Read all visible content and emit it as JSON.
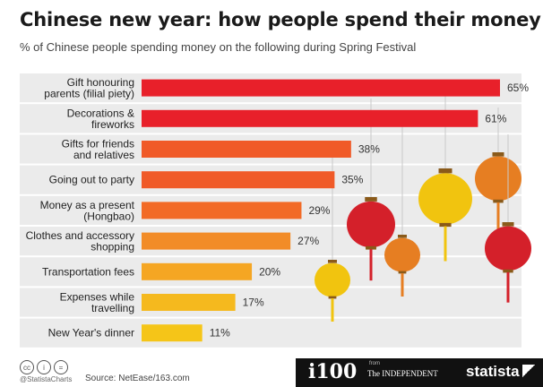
{
  "header": {
    "title": "Chinese new year: how people spend their money",
    "subtitle": "% of Chinese people spending money on the following during Spring Festival"
  },
  "footer": {
    "handle": "@StatistaCharts",
    "source": "Source: NetEase/163.com",
    "i100": "i100",
    "from": "from",
    "independent": "The INDEPENDENT",
    "statista": "statista"
  },
  "colors": {
    "top": "#e8202a",
    "mid": "#f05a28",
    "orange": "#f28c28",
    "low": "#f5a623",
    "yellow": "#f5c518",
    "row_bg": "#ebebeb",
    "lantern_red": "#d4202a",
    "lantern_orange": "#e67e22",
    "lantern_yellow": "#f1c40f"
  },
  "chart_data": {
    "type": "bar",
    "orientation": "horizontal",
    "value_suffix": "%",
    "xlim": [
      0,
      65
    ],
    "categories": [
      [
        "Gift honouring",
        "parents (filial piety)"
      ],
      [
        "Decorations &",
        "fireworks"
      ],
      [
        "Gifts for friends",
        "and relatives"
      ],
      [
        "Going out to party"
      ],
      [
        "Money as a present",
        "(Hongbao)"
      ],
      [
        "Clothes and accessory",
        "shopping"
      ],
      [
        "Transportation fees"
      ],
      [
        "Expenses while",
        "travelling"
      ],
      [
        "New Year's dinner"
      ]
    ],
    "values": [
      65,
      61,
      38,
      35,
      29,
      27,
      20,
      17,
      11
    ],
    "bar_colors": [
      "#e8202a",
      "#e8202a",
      "#f05a28",
      "#f05a28",
      "#f26a26",
      "#f28c28",
      "#f5a623",
      "#f5b91e",
      "#f5c518"
    ]
  }
}
